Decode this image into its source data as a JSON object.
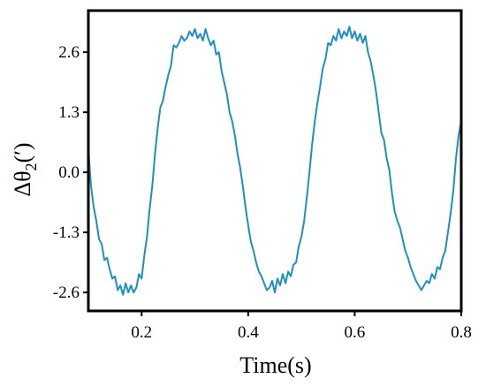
{
  "chart_data": {
    "type": "line",
    "title": "",
    "xlabel": "Time(s)",
    "ylabel": "Δθ2(′)",
    "ylabel_parts": {
      "symbol": "Δθ",
      "subscript": "2",
      "unit": "(′)"
    },
    "xlim": [
      0.1,
      0.8
    ],
    "ylim": [
      -3.0,
      3.5
    ],
    "x_ticks": [
      0.2,
      0.4,
      0.6,
      0.8
    ],
    "x_tick_labels": [
      "0.2",
      "0.4",
      "0.6",
      "0.8"
    ],
    "y_ticks": [
      2.6,
      1.3,
      0.0,
      -1.3,
      -2.6
    ],
    "y_tick_labels": [
      "2.6",
      "1.3",
      "0.0",
      "-1.3",
      "-2.6"
    ],
    "grid": false,
    "legend": "none",
    "series": [
      {
        "color": "#1f8fc1",
        "x": [
          0.1,
          0.105,
          0.11,
          0.115,
          0.12,
          0.125,
          0.13,
          0.135,
          0.14,
          0.145,
          0.15,
          0.155,
          0.16,
          0.165,
          0.17,
          0.175,
          0.18,
          0.185,
          0.19,
          0.195,
          0.2,
          0.205,
          0.21,
          0.215,
          0.22,
          0.225,
          0.23,
          0.235,
          0.24,
          0.245,
          0.25,
          0.255,
          0.26,
          0.265,
          0.27,
          0.275,
          0.28,
          0.285,
          0.29,
          0.295,
          0.3,
          0.305,
          0.31,
          0.315,
          0.32,
          0.325,
          0.33,
          0.335,
          0.34,
          0.345,
          0.35,
          0.355,
          0.36,
          0.365,
          0.37,
          0.375,
          0.38,
          0.385,
          0.39,
          0.395,
          0.4,
          0.405,
          0.41,
          0.415,
          0.42,
          0.425,
          0.43,
          0.435,
          0.44,
          0.445,
          0.45,
          0.455,
          0.46,
          0.465,
          0.47,
          0.475,
          0.48,
          0.485,
          0.49,
          0.495,
          0.5,
          0.505,
          0.51,
          0.515,
          0.52,
          0.525,
          0.53,
          0.535,
          0.54,
          0.545,
          0.55,
          0.555,
          0.56,
          0.565,
          0.57,
          0.575,
          0.58,
          0.585,
          0.59,
          0.595,
          0.6,
          0.605,
          0.61,
          0.615,
          0.62,
          0.625,
          0.63,
          0.635,
          0.64,
          0.645,
          0.65,
          0.655,
          0.66,
          0.665,
          0.67,
          0.675,
          0.68,
          0.685,
          0.69,
          0.695,
          0.7,
          0.705,
          0.71,
          0.715,
          0.72,
          0.725,
          0.73,
          0.735,
          0.74,
          0.745,
          0.75,
          0.755,
          0.76,
          0.765,
          0.77,
          0.775,
          0.78,
          0.785,
          0.79,
          0.795,
          0.8
        ],
        "y": [
          0.5,
          -0.3,
          -0.75,
          -1.05,
          -1.45,
          -1.55,
          -1.9,
          -1.85,
          -2.1,
          -2.3,
          -2.25,
          -2.55,
          -2.45,
          -2.65,
          -2.4,
          -2.6,
          -2.45,
          -2.6,
          -2.5,
          -2.2,
          -2.3,
          -1.8,
          -1.4,
          -0.8,
          -0.3,
          0.4,
          0.95,
          1.4,
          1.55,
          1.85,
          2.1,
          2.3,
          2.75,
          2.7,
          2.8,
          2.95,
          2.85,
          2.9,
          3.05,
          2.95,
          3.1,
          2.9,
          3.0,
          2.85,
          3.1,
          2.9,
          2.75,
          2.85,
          2.55,
          2.6,
          2.2,
          1.95,
          1.7,
          1.3,
          1.1,
          0.8,
          0.4,
          0.1,
          -0.3,
          -0.75,
          -1.15,
          -1.5,
          -1.7,
          -1.95,
          -2.15,
          -2.25,
          -2.4,
          -2.55,
          -2.5,
          -2.35,
          -2.6,
          -2.3,
          -2.45,
          -2.2,
          -2.4,
          -2.15,
          -2.25,
          -2.0,
          -1.95,
          -1.6,
          -1.4,
          -1.05,
          -0.55,
          0.0,
          0.6,
          1.1,
          1.5,
          1.85,
          2.25,
          2.45,
          2.8,
          2.75,
          2.95,
          2.85,
          3.1,
          2.9,
          3.05,
          2.95,
          3.15,
          2.9,
          3.05,
          2.85,
          3.0,
          2.8,
          2.95,
          2.6,
          2.4,
          2.1,
          1.75,
          1.3,
          0.85,
          0.7,
          0.3,
          0.05,
          -0.45,
          -0.85,
          -1.05,
          -1.2,
          -1.45,
          -1.7,
          -1.85,
          -2.05,
          -2.2,
          -2.35,
          -2.45,
          -2.55,
          -2.45,
          -2.35,
          -2.4,
          -2.2,
          -2.3,
          -2.05,
          -2.1,
          -1.85,
          -1.7,
          -1.3,
          -0.9,
          -0.4,
          0.3,
          0.8,
          1.1
        ]
      }
    ]
  }
}
